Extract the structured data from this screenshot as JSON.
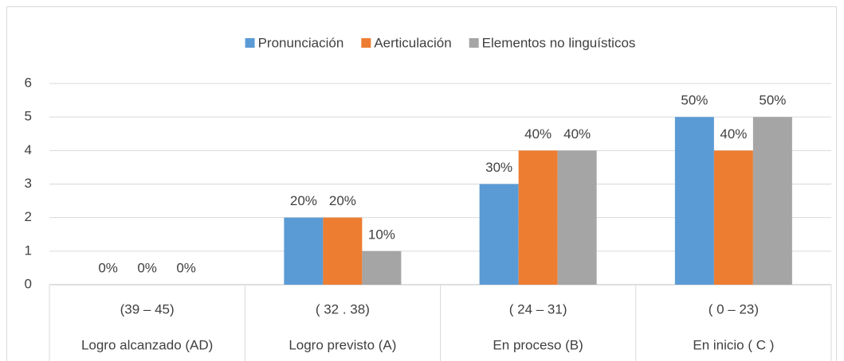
{
  "chart_data": {
    "type": "bar",
    "categories": [
      [
        "(39 – 45)",
        "Logro alcanzado (AD)"
      ],
      [
        "( 32 . 38)",
        "Logro previsto (A)"
      ],
      [
        "( 24 – 31)",
        "En proceso  (B)"
      ],
      [
        "( 0 – 23)",
        "En inicio  ( C )"
      ]
    ],
    "series": [
      {
        "name": "Pronunciación",
        "color": "#5b9bd5",
        "values": [
          0,
          2,
          3,
          5
        ],
        "value_labels": [
          "0%",
          "20%",
          "30%",
          "50%"
        ]
      },
      {
        "name": "Aerticulación",
        "color": "#ed7d31",
        "values": [
          0,
          2,
          4,
          4
        ],
        "value_labels": [
          "0%",
          "20%",
          "40%",
          "40%"
        ]
      },
      {
        "name": "Elementos no linguísticos",
        "color": "#a5a5a5",
        "values": [
          0,
          1,
          4,
          5
        ],
        "value_labels": [
          "0%",
          "10%",
          "40%",
          "50%"
        ]
      }
    ],
    "ylim": [
      0,
      6
    ],
    "yticks": [
      0,
      1,
      2,
      3,
      4,
      5,
      6
    ],
    "grid": true,
    "legend": "top"
  }
}
